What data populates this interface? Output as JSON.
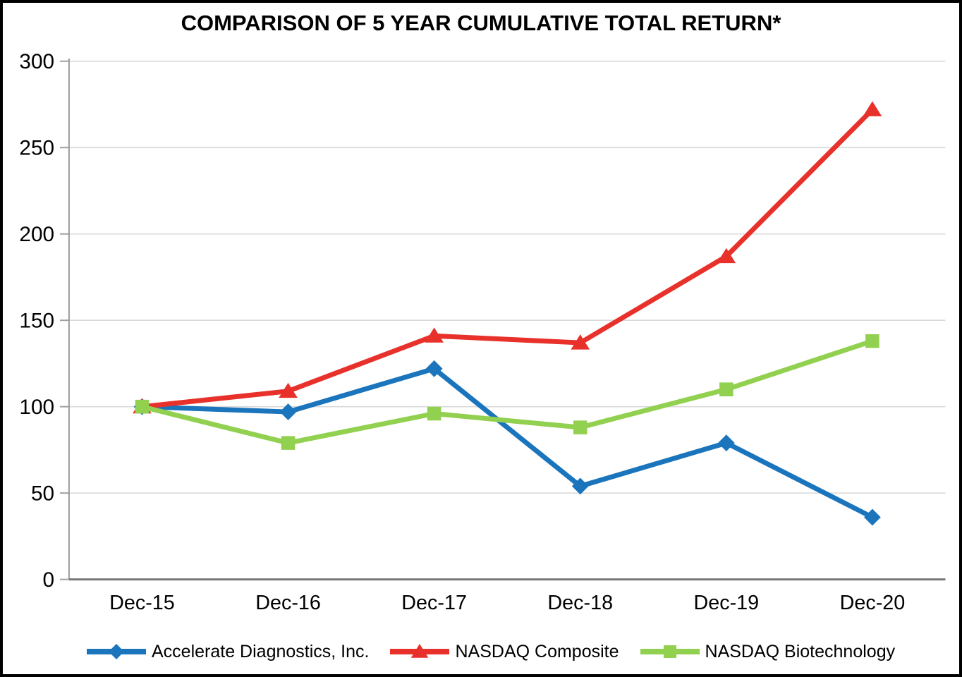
{
  "chart_data": {
    "type": "line",
    "title": "COMPARISON OF 5 YEAR CUMULATIVE TOTAL RETURN*",
    "categories": [
      "Dec-15",
      "Dec-16",
      "Dec-17",
      "Dec-18",
      "Dec-19",
      "Dec-20"
    ],
    "series": [
      {
        "name": "Accelerate Diagnostics, Inc.",
        "color": "#1B75BC",
        "marker": "diamond",
        "values": [
          100,
          97,
          122,
          54,
          79,
          36
        ]
      },
      {
        "name": "NASDAQ Composite",
        "color": "#E8312B",
        "marker": "triangle",
        "values": [
          100,
          109,
          141,
          137,
          187,
          272
        ]
      },
      {
        "name": "NASDAQ Biotechnology",
        "color": "#92D050",
        "marker": "square",
        "values": [
          100,
          79,
          96,
          88,
          110,
          138
        ]
      }
    ],
    "xlabel": "",
    "ylabel": "",
    "ylim": [
      0,
      300
    ],
    "yticks": [
      0,
      50,
      100,
      150,
      200,
      250,
      300
    ],
    "grid": true,
    "legend_position": "bottom",
    "colors": {
      "gridline": "#DADADA",
      "axis_line": "#9B9B9B",
      "zero_line": "#777777",
      "tick": "#A0A0A0",
      "text": "#000000",
      "frame_border": "#000000",
      "background": "#FFFFFF"
    }
  }
}
